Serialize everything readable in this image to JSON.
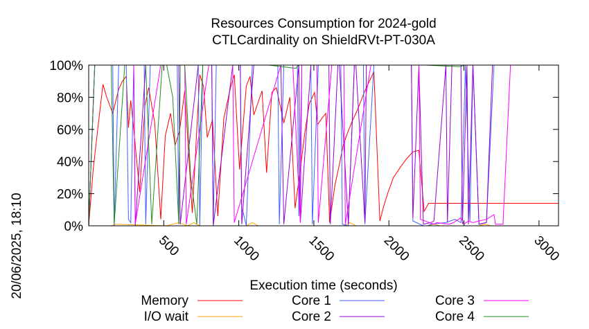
{
  "chart_data": {
    "type": "line",
    "title": "Resources Consumption for 2024-gold",
    "subtitle": "CTLCardinality on ShieldRVt-PT-030A",
    "xlabel": "Execution time (seconds)",
    "ylabel": "",
    "side_label": "20/06/2025, 18:10",
    "xlim": [
      0,
      3130
    ],
    "ylim": [
      0,
      100
    ],
    "xticks": [
      500,
      1000,
      1500,
      2000,
      2500,
      3000
    ],
    "xtick_labels": [
      "500",
      "1000",
      "1500",
      "2000",
      "2500",
      "3000"
    ],
    "yticks": [
      0,
      20,
      40,
      60,
      80,
      100
    ],
    "ytick_labels": [
      "0%",
      "20%",
      "40%",
      "60%",
      "80%",
      "100%"
    ],
    "grid": false,
    "legend_position": "bottom",
    "series": [
      {
        "name": "Memory",
        "color": "#ff0000",
        "x": [
          0,
          30,
          60,
          95,
          120,
          160,
          200,
          225,
          250,
          265,
          280,
          300,
          340,
          375,
          400,
          440,
          480,
          510,
          545,
          575,
          605,
          640,
          690,
          740,
          765,
          790,
          825,
          860,
          900,
          945,
          970,
          1005,
          1050,
          1075,
          1100,
          1155,
          1185,
          1220,
          1250,
          1300,
          1340,
          1375,
          1410,
          1440,
          1470,
          1505,
          1525,
          1555,
          1580,
          1605,
          1640,
          1670,
          1695,
          1725,
          1755,
          1790,
          1815,
          1840,
          1870,
          1900,
          1940,
          1965,
          1995,
          2030,
          2080,
          2120,
          2160,
          2200,
          2235,
          2265,
          2290,
          2330,
          2380,
          2420,
          2460,
          2490,
          2560,
          2620,
          2680,
          2730,
          2760,
          2790,
          2840,
          2880,
          2930,
          2985,
          3010,
          3030,
          3090,
          3130
        ],
        "y": [
          0,
          35,
          60,
          88,
          80,
          70,
          85,
          90,
          93,
          61,
          78,
          60,
          21,
          75,
          86,
          64,
          4,
          56,
          70,
          50,
          59,
          84,
          8,
          94,
          87,
          55,
          66,
          6,
          67,
          86,
          94,
          35,
          87,
          93,
          69,
          84,
          33,
          83,
          86,
          64,
          80,
          11,
          35,
          58,
          76,
          83,
          63,
          67,
          70,
          2,
          25,
          38,
          50,
          58,
          65,
          72,
          78,
          84,
          90,
          96,
          3,
          12,
          21,
          30,
          37,
          42,
          46,
          47,
          9,
          14,
          14,
          14,
          14,
          14,
          14,
          14,
          14,
          14,
          14,
          14,
          14,
          14,
          14,
          14,
          14,
          14,
          14,
          14,
          14,
          14
        ]
      },
      {
        "name": "I/O wait",
        "color": "#ffa500",
        "x": [
          0,
          150,
          180,
          520,
          560,
          600,
          660,
          700,
          740,
          1050,
          1090,
          1130,
          1700,
          1740,
          1780,
          2260,
          2300,
          2340,
          2600,
          2640,
          2680,
          3130
        ],
        "y": [
          0,
          0,
          1,
          0,
          1,
          2,
          0,
          2,
          0,
          0,
          2,
          0,
          0,
          2,
          0,
          0,
          1,
          0,
          0,
          1,
          0,
          0
        ]
      },
      {
        "name": "Core 1",
        "color": "#4060ff",
        "x": [
          0,
          40,
          160,
          170,
          200,
          250,
          265,
          280,
          300,
          310,
          370,
          380,
          410,
          420,
          590,
          600,
          610,
          640,
          730,
          740,
          760,
          820,
          830,
          850,
          880,
          960,
          1010,
          1020,
          1030,
          1050,
          1090,
          1130,
          1200,
          1260,
          1270,
          1300,
          1390,
          1400,
          1420,
          1470,
          1480,
          1490,
          1530,
          1550,
          1580,
          1680,
          1690,
          1730,
          1770,
          1830,
          1840,
          1900,
          2150,
          2160,
          2230,
          2260,
          2280,
          2380,
          2410,
          2440,
          2480,
          2510,
          2540,
          2560,
          2600,
          2650,
          2700,
          2760,
          3130
        ],
        "y": [
          0,
          100,
          100,
          0,
          100,
          100,
          4,
          2,
          100,
          100,
          100,
          1,
          100,
          100,
          100,
          1,
          100,
          100,
          100,
          0,
          100,
          100,
          1,
          100,
          100,
          100,
          100,
          10,
          8,
          0,
          100,
          100,
          100,
          100,
          1,
          100,
          100,
          6,
          100,
          100,
          100,
          1,
          100,
          100,
          100,
          100,
          1,
          0,
          100,
          100,
          1,
          100,
          100,
          3,
          0,
          0,
          1,
          2,
          3,
          4,
          2,
          100,
          3,
          100,
          1,
          2,
          100,
          100,
          100
        ]
      },
      {
        "name": "Core 2",
        "color": "#9400d3",
        "x": [
          0,
          40,
          300,
          310,
          380,
          390,
          600,
          610,
          730,
          740,
          800,
          820,
          830,
          960,
          970,
          1010,
          1020,
          1100,
          1110,
          1200,
          1280,
          1300,
          1400,
          1410,
          1480,
          1490,
          1530,
          1600,
          1610,
          1660,
          1670,
          1730,
          1770,
          1780,
          1840,
          1850,
          2150,
          2160,
          2200,
          2230,
          2280,
          2300,
          2380,
          2390,
          2420,
          2480,
          2490,
          2520,
          2530,
          2560,
          2600,
          2650,
          2690,
          3130
        ],
        "y": [
          0,
          100,
          100,
          0,
          100,
          100,
          100,
          1,
          100,
          100,
          100,
          100,
          0,
          100,
          100,
          100,
          1,
          100,
          100,
          100,
          100,
          1,
          100,
          2,
          100,
          100,
          100,
          100,
          1,
          100,
          100,
          1,
          100,
          100,
          2,
          100,
          100,
          5,
          100,
          1,
          2,
          3,
          100,
          2,
          100,
          100,
          1,
          100,
          1,
          100,
          1,
          2,
          100,
          100
        ]
      },
      {
        "name": "Core 3",
        "color": "#ff00ff",
        "x": [
          0,
          40,
          120,
          130,
          300,
          310,
          480,
          490,
          640,
          650,
          800,
          810,
          960,
          970,
          1280,
          1340,
          1360,
          1410,
          1420,
          1520,
          1530,
          1620,
          1700,
          1710,
          1880,
          1890,
          2150,
          2160,
          2200,
          2210,
          2300,
          2320,
          2400,
          2430,
          2480,
          2500,
          2530,
          2560,
          2600,
          2650,
          2700,
          2710,
          2760,
          2810,
          2840,
          3130
        ],
        "y": [
          0,
          100,
          100,
          100,
          100,
          1,
          100,
          100,
          100,
          1,
          100,
          100,
          100,
          2,
          100,
          100,
          100,
          2,
          100,
          100,
          2,
          100,
          100,
          1,
          100,
          100,
          100,
          100,
          100,
          4,
          1,
          2,
          1,
          2,
          5,
          1,
          3,
          2,
          3,
          4,
          7,
          1,
          1,
          100,
          100,
          100
        ]
      },
      {
        "name": "Core 4",
        "color": "#228b22",
        "x": [
          0,
          40,
          150,
          170,
          240,
          280,
          300,
          380,
          420,
          490,
          520,
          560,
          600,
          610,
          640,
          680,
          720,
          760,
          1150,
          1160,
          1200,
          1380,
          1400,
          1500,
          1800,
          1850,
          2200,
          2240,
          2480,
          2500,
          2560,
          3130
        ],
        "y": [
          0,
          100,
          100,
          1,
          100,
          100,
          100,
          100,
          1,
          100,
          100,
          80,
          1,
          100,
          100,
          30,
          1,
          100,
          100,
          100,
          100,
          98,
          100,
          100,
          100,
          100,
          100,
          100,
          99,
          100,
          100,
          100
        ]
      }
    ]
  }
}
